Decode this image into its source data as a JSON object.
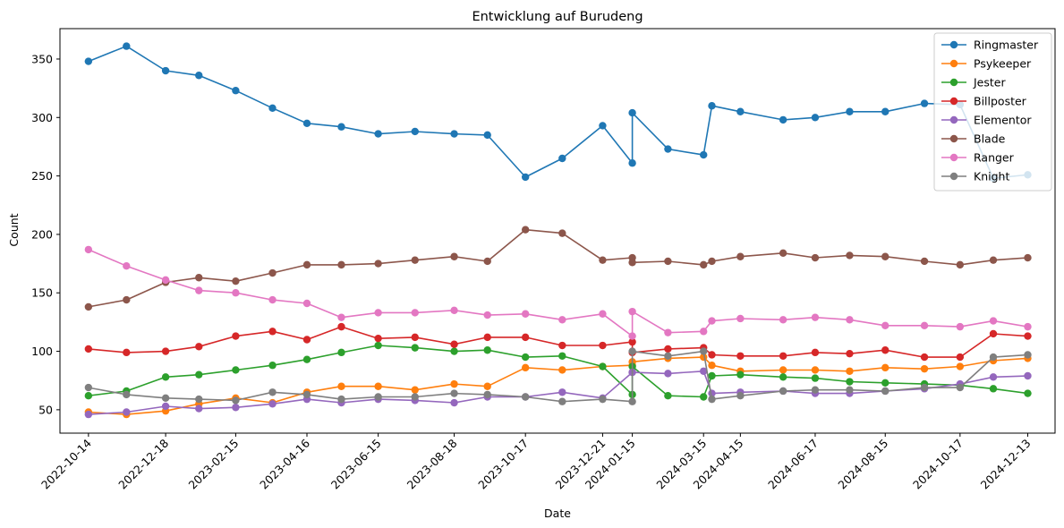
{
  "chart_data": {
    "type": "line",
    "title": "Entwicklung auf Burudeng",
    "xlabel": "Date",
    "ylabel": "Count",
    "x_axis": "date",
    "xlim": [
      "2022-09-20",
      "2025-01-05"
    ],
    "ylim": [
      30,
      376
    ],
    "yticks": [
      50,
      100,
      150,
      200,
      250,
      300,
      350
    ],
    "xticks": [
      "2022-10-14",
      "2022-12-18",
      "2023-02-15",
      "2023-04-16",
      "2023-06-15",
      "2023-08-18",
      "2023-10-17",
      "2023-12-21",
      "2024-01-15",
      "2024-03-15",
      "2024-04-15",
      "2024-06-17",
      "2024-08-15",
      "2024-10-17",
      "2024-12-13"
    ],
    "grid": false,
    "legend_position": "top-right",
    "x": [
      "2022-10-14",
      "2022-11-15",
      "2022-12-18",
      "2023-01-15",
      "2023-02-15",
      "2023-03-18",
      "2023-04-16",
      "2023-05-15",
      "2023-06-15",
      "2023-07-16",
      "2023-08-18",
      "2023-09-15",
      "2023-10-17",
      "2023-11-17",
      "2023-12-21",
      "2024-01-15",
      "2024-01-15",
      "2024-02-14",
      "2024-03-15",
      "2024-03-22",
      "2024-04-15",
      "2024-05-21",
      "2024-06-17",
      "2024-07-16",
      "2024-08-15",
      "2024-09-17",
      "2024-10-17",
      "2024-11-14",
      "2024-12-13"
    ],
    "series": [
      {
        "name": "Ringmaster",
        "color": "#1f77b4",
        "values": [
          348,
          361,
          340,
          336,
          323,
          308,
          295,
          292,
          286,
          288,
          286,
          285,
          249,
          265,
          293,
          261,
          304,
          273,
          268,
          310,
          305,
          298,
          300,
          305,
          305,
          312,
          311,
          248,
          251
        ]
      },
      {
        "name": "Psykeeper",
        "color": "#ff7f0e",
        "values": [
          48,
          46,
          49,
          55,
          60,
          56,
          65,
          70,
          70,
          67,
          72,
          70,
          86,
          84,
          87,
          88,
          91,
          94,
          95,
          88,
          83,
          84,
          84,
          83,
          86,
          85,
          87,
          92,
          94
        ]
      },
      {
        "name": "Jester",
        "color": "#2ca02c",
        "values": [
          62,
          66,
          78,
          80,
          84,
          88,
          93,
          99,
          105,
          103,
          100,
          101,
          95,
          96,
          87,
          63,
          87,
          62,
          61,
          79,
          80,
          78,
          77,
          74,
          73,
          72,
          71,
          68,
          64
        ]
      },
      {
        "name": "Billposter",
        "color": "#d62728",
        "values": [
          102,
          99,
          100,
          104,
          113,
          117,
          110,
          121,
          111,
          112,
          106,
          112,
          112,
          105,
          105,
          108,
          99,
          102,
          103,
          97,
          96,
          96,
          99,
          98,
          101,
          95,
          95,
          115,
          113
        ]
      },
      {
        "name": "Elementor",
        "color": "#9467bd",
        "values": [
          46,
          48,
          53,
          51,
          52,
          55,
          59,
          56,
          59,
          58,
          56,
          61,
          61,
          65,
          60,
          82,
          82,
          81,
          83,
          64,
          65,
          66,
          64,
          64,
          66,
          68,
          72,
          78,
          79
        ]
      },
      {
        "name": "Blade",
        "color": "#8c564b",
        "values": [
          138,
          144,
          159,
          163,
          160,
          167,
          174,
          174,
          175,
          178,
          181,
          177,
          204,
          201,
          178,
          180,
          176,
          177,
          174,
          177,
          181,
          184,
          180,
          182,
          181,
          177,
          174,
          178,
          180
        ]
      },
      {
        "name": "Ranger",
        "color": "#e377c2",
        "values": [
          187,
          173,
          161,
          152,
          150,
          144,
          141,
          129,
          133,
          133,
          135,
          131,
          132,
          127,
          132,
          113,
          134,
          116,
          117,
          126,
          128,
          127,
          129,
          127,
          122,
          122,
          121,
          126,
          121
        ]
      },
      {
        "name": "Knight",
        "color": "#7f7f7f",
        "values": [
          69,
          63,
          60,
          59,
          58,
          65,
          63,
          59,
          61,
          61,
          64,
          63,
          61,
          57,
          59,
          57,
          100,
          96,
          100,
          59,
          62,
          66,
          67,
          67,
          66,
          69,
          69,
          95,
          97
        ]
      }
    ]
  }
}
